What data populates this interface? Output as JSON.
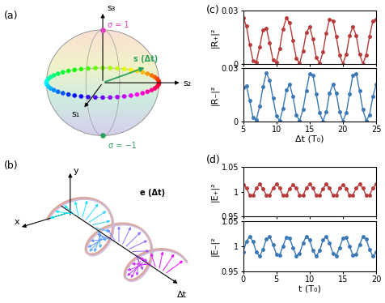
{
  "chart_data": [
    {
      "type": "line",
      "ylabel": "|R₊|²",
      "tick_labels": "y",
      "x": [
        5,
        5.5,
        6,
        6.5,
        7,
        7.5,
        8,
        8.5,
        9,
        9.5,
        10,
        10.5,
        11,
        11.5,
        12,
        12.5,
        13,
        13.5,
        14,
        14.5,
        15,
        15.5,
        16,
        16.5,
        17,
        17.5,
        18,
        18.5,
        19,
        19.5,
        20,
        20.5,
        21,
        21.5,
        22,
        22.5,
        23,
        23.5,
        24,
        24.5,
        25
      ],
      "series": [
        {
          "color": "#b83a3a",
          "marker": "o",
          "line_style": "solid",
          "values": [
            0.026,
            0.0213,
            0.0107,
            0.0017,
            0.0009,
            0.0094,
            0.019,
            0.0201,
            0.0116,
            0.002,
            0.0008,
            0.0086,
            0.0195,
            0.0258,
            0.023,
            0.013,
            0.003,
            0.0002,
            0.0073,
            0.0175,
            0.0208,
            0.0138,
            0.0035,
            0.0002,
            0.0065,
            0.0174,
            0.0252,
            0.0243,
            0.0153,
            0.0047,
            0,
            0.0053,
            0.0158,
            0.021,
            0.0158,
            0.0053,
            0,
            0.0047,
            0.0153,
            0.0243,
            0.0252
          ]
        }
      ],
      "xlim": [
        5,
        25
      ],
      "xticks": [
        5,
        10,
        15,
        20,
        25
      ],
      "ylim": [
        0,
        0.03
      ],
      "yticks": [
        0,
        0.03
      ]
    },
    {
      "type": "line",
      "ylabel": "|R₋|²",
      "xlabel": "Δt (T₀)",
      "x": [
        5,
        5.5,
        6,
        6.5,
        7,
        7.5,
        8,
        8.5,
        9,
        9.5,
        10,
        10.5,
        11,
        11.5,
        12,
        12.5,
        13,
        13.5,
        14,
        14.5,
        15,
        15.5,
        16,
        16.5,
        17,
        17.5,
        18,
        18.5,
        19,
        19.5,
        20,
        20.5,
        21,
        21.5,
        22,
        22.5,
        23,
        23.5,
        24,
        24.5,
        25
      ],
      "series": [
        {
          "color": "#3a78b5",
          "marker": "o",
          "line_style": "solid",
          "values": [
            0.019,
            0.0201,
            0.0116,
            0.002,
            0.0008,
            0.0086,
            0.0195,
            0.0275,
            0.023,
            0.013,
            0.003,
            0.0002,
            0.0073,
            0.0175,
            0.0208,
            0.0138,
            0.0035,
            0.0002,
            0.0065,
            0.0174,
            0.027,
            0.026,
            0.0153,
            0.0047,
            0,
            0.0053,
            0.0158,
            0.021,
            0.0158,
            0.0053,
            0,
            0.0047,
            0.0153,
            0.026,
            0.027,
            0.0174,
            0.0065,
            0.0002,
            0.0035,
            0.0138,
            0.0208
          ]
        }
      ],
      "xlim": [
        5,
        25
      ],
      "xticks": [
        5,
        10,
        15,
        20,
        25
      ],
      "ylim": [
        0,
        0.03
      ],
      "yticks": [
        0,
        0.03
      ]
    },
    {
      "type": "line",
      "ylabel": "|E₊|²",
      "tick_labels": "y",
      "x": [
        0,
        0.5,
        1,
        1.5,
        2,
        2.5,
        3,
        3.5,
        4,
        4.5,
        5,
        5.5,
        6,
        6.5,
        7,
        7.5,
        8,
        8.5,
        9,
        9.5,
        10,
        10.5,
        11,
        11.5,
        12,
        12.5,
        13,
        13.5,
        14,
        14.5,
        15,
        15.5,
        16,
        16.5,
        17,
        17.5,
        18,
        18.5,
        19,
        19.5,
        20
      ],
      "series": [
        {
          "color": "#b83a3a",
          "marker": "o",
          "line_style": "solid",
          "values": [
            1.014,
            1.007,
            0.993,
            0.992,
            1.007,
            1.015,
            1.006,
            0.993,
            0.993,
            1.007,
            1.015,
            1.007,
            0.992,
            0.993,
            1.006,
            1.014,
            1.007,
            0.993,
            0.992,
            1.007,
            1.015,
            1.007,
            0.993,
            0.993,
            1.006,
            1.015,
            1.007,
            0.992,
            0.993,
            1.007,
            1.014,
            1.006,
            0.993,
            0.993,
            1.007,
            1.015,
            1.007,
            0.992,
            0.993,
            1.007,
            1.015
          ]
        }
      ],
      "xlim": [
        0,
        20
      ],
      "xticks": [
        0,
        5,
        10,
        15,
        20
      ],
      "ylim": [
        0.95,
        1.05
      ],
      "yticks": [
        0.95,
        1,
        1.05
      ]
    },
    {
      "type": "line",
      "ylabel": "|E₋|²",
      "xlabel": "t (T₀)",
      "x": [
        0,
        0.5,
        1,
        1.5,
        2,
        2.5,
        3,
        3.5,
        4,
        4.5,
        5,
        5.5,
        6,
        6.5,
        7,
        7.5,
        8,
        8.5,
        9,
        9.5,
        10,
        10.5,
        11,
        11.5,
        12,
        12.5,
        13,
        13.5,
        14,
        14.5,
        15,
        15.5,
        16,
        16.5,
        17,
        17.5,
        18,
        18.5,
        19,
        19.5,
        20
      ],
      "series": [
        {
          "color": "#3a78b5",
          "marker": "o",
          "line_style": "solid",
          "values": [
            0.988,
            1.009,
            1.02,
            1.009,
            0.988,
            0.98,
            0.994,
            1.014,
            1.019,
            1.003,
            0.984,
            0.982,
            1.0,
            1.018,
            1.016,
            0.997,
            0.981,
            0.986,
            1.006,
            1.02,
            1.012,
            0.991,
            0.98,
            0.991,
            1.012,
            1.02,
            1.006,
            0.986,
            0.981,
            0.997,
            1.016,
            1.018,
            1.0,
            0.982,
            0.984,
            1.003,
            1.019,
            1.014,
            0.994,
            0.98,
            0.988
          ]
        }
      ],
      "xlim": [
        0,
        20
      ],
      "xticks": [
        0,
        5,
        10,
        15,
        20
      ],
      "ylim": [
        0.95,
        1.05
      ],
      "yticks": [
        0.95,
        1,
        1.05
      ]
    }
  ],
  "diagram": {
    "panel_labels": [
      "(a)",
      "(b)",
      "(c)",
      "(d)"
    ],
    "sphere": {
      "axes": [
        "s₁",
        "s₂",
        "s₃"
      ],
      "north": "σ = 1",
      "south": "σ = −1",
      "vector": "s (Δt)"
    },
    "helix": {
      "axes": [
        "x",
        "y",
        "Δt"
      ],
      "vector": "e (Δt)"
    }
  }
}
